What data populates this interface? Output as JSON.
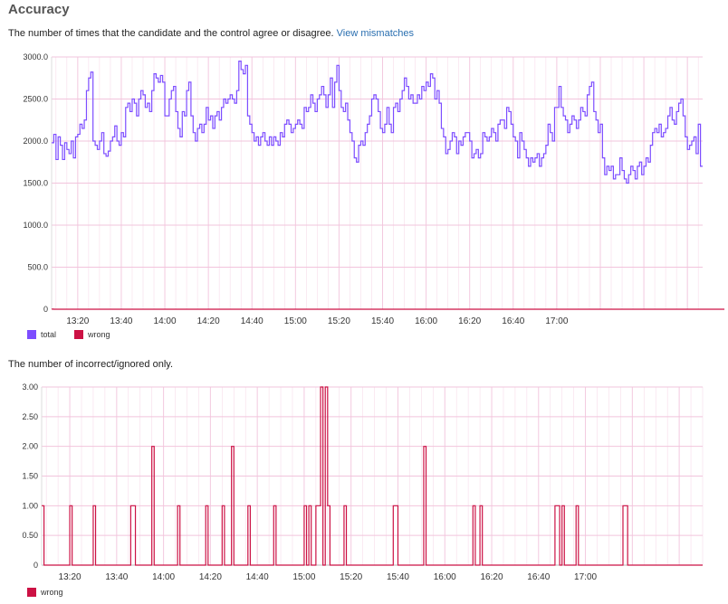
{
  "page": {
    "title": "Accuracy",
    "desc1": "The number of times that the candidate and the control agree or disagree.",
    "link": "View mismatches",
    "desc2": "The number of incorrect/ignored only."
  },
  "colors": {
    "total": "#7d4dff",
    "wrong": "#cc1144",
    "grid": "#f2c4dc"
  },
  "chart_data": [
    {
      "type": "line",
      "subtype": "step",
      "xlabel": "",
      "ylabel": "",
      "x_start": "13:08",
      "x_step_minutes": 1,
      "ylim": [
        0,
        3000
      ],
      "yticks": [
        "3000.0",
        "2500.0",
        "2000.0",
        "1500.0",
        "1000.0",
        "500.0",
        "0"
      ],
      "xticks": [
        "13:20",
        "13:40",
        "14:00",
        "14:20",
        "14:40",
        "15:00",
        "15:20",
        "15:40",
        "16:00",
        "16:20",
        "16:40",
        "17:00"
      ],
      "legend": [
        "total",
        "wrong"
      ],
      "legend_position": "bottom-left",
      "series": [
        {
          "name": "total",
          "color": "#7d4dff",
          "values": [
            1980,
            2080,
            1780,
            2050,
            1950,
            1780,
            1980,
            1900,
            1850,
            2000,
            1800,
            2050,
            2080,
            2200,
            2150,
            2250,
            2600,
            2750,
            2820,
            2000,
            1950,
            1900,
            2000,
            2100,
            1850,
            1820,
            1880,
            2000,
            2050,
            2180,
            2000,
            1950,
            2100,
            2050,
            2400,
            2450,
            2350,
            2500,
            2450,
            2300,
            2500,
            2600,
            2550,
            2400,
            2450,
            2350,
            2600,
            2800,
            2750,
            2700,
            2780,
            2700,
            2300,
            2300,
            2500,
            2600,
            2650,
            2350,
            2150,
            2050,
            2350,
            2300,
            2600,
            2700,
            2300,
            2100,
            2000,
            2150,
            2200,
            2100,
            2200,
            2400,
            2250,
            2300,
            2150,
            2300,
            2350,
            2250,
            2400,
            2500,
            2450,
            2500,
            2550,
            2500,
            2450,
            2600,
            2950,
            2850,
            2800,
            2900,
            2300,
            2200,
            2100,
            2000,
            2050,
            1950,
            2050,
            2100,
            2000,
            1950,
            2050,
            1950,
            2050,
            2000,
            1950,
            2100,
            2050,
            2200,
            2250,
            2200,
            2100,
            2150,
            2200,
            2250,
            2200,
            2150,
            2400,
            2350,
            2400,
            2550,
            2450,
            2350,
            2500,
            2550,
            2650,
            2550,
            2400,
            2550,
            2750,
            2400,
            2700,
            2900,
            2600,
            2400,
            2350,
            2450,
            2250,
            2100,
            2000,
            1800,
            1750,
            1950,
            2000,
            1950,
            2100,
            2200,
            2300,
            2500,
            2550,
            2500,
            2350,
            2150,
            2100,
            2200,
            2400,
            2200,
            2100,
            2400,
            2450,
            2350,
            2500,
            2600,
            2750,
            2650,
            2500,
            2550,
            2450,
            2450,
            2550,
            2500,
            2650,
            2600,
            2700,
            2650,
            2800,
            2750,
            2500,
            2600,
            2450,
            2150,
            2050,
            1850,
            1900,
            2000,
            2100,
            2050,
            1850,
            2000,
            1950,
            2050,
            2100,
            2100,
            2000,
            1800,
            1850,
            1900,
            1800,
            1850,
            2100,
            2050,
            2000,
            2050,
            2150,
            2100,
            2000,
            2200,
            2250,
            2250,
            2150,
            2400,
            2350,
            2200,
            2050,
            2000,
            1800,
            2100,
            2000,
            1900,
            1800,
            1700,
            1800,
            1750,
            1800,
            1850,
            1700,
            1800,
            1850,
            1950,
            2200,
            2100,
            2000,
            2400,
            2400,
            2650,
            2400,
            2300,
            2250,
            2100,
            2200,
            2300,
            2250,
            2150,
            2250,
            2400,
            2350,
            2300,
            2550,
            2650,
            2700,
            2350,
            2250,
            2100,
            2200,
            1800,
            1600,
            1700,
            1650,
            1700,
            1550,
            1600,
            1600,
            1800,
            1650,
            1550,
            1500,
            1600,
            1700,
            1650,
            1550,
            1700,
            1750,
            1600,
            1700,
            1800,
            1750,
            1950,
            2100,
            2150,
            2100,
            2200,
            2050,
            2100,
            2150,
            2300,
            2400,
            2250,
            2200,
            2350,
            2450,
            2500,
            2300,
            2050,
            1900,
            1950,
            2000,
            2050,
            1850,
            2200,
            1700
          ]
        },
        {
          "name": "wrong",
          "color": "#cc1144",
          "values": [
            1,
            0,
            0,
            0,
            0,
            0,
            0,
            0,
            0,
            0,
            0,
            0,
            0,
            0,
            0,
            0,
            0,
            0,
            0,
            0,
            0,
            0,
            0,
            0,
            0,
            0,
            0,
            0,
            0,
            0,
            0,
            0,
            0,
            0,
            0,
            0,
            0,
            0,
            0,
            0,
            0,
            0,
            0,
            0,
            0,
            0,
            0,
            0,
            0,
            0,
            0,
            0,
            0,
            0,
            0,
            0,
            0,
            0,
            0,
            0,
            0,
            0,
            0,
            0,
            0,
            0,
            0,
            0,
            0,
            0,
            0,
            0,
            0,
            0,
            0,
            0,
            0,
            0,
            0,
            0,
            0,
            0,
            0,
            0,
            0,
            0,
            0,
            0,
            0,
            0,
            0,
            0,
            0,
            0,
            0,
            0,
            0,
            0,
            0,
            0,
            0,
            0,
            0,
            0,
            0,
            0,
            0,
            0,
            0,
            0,
            0,
            0,
            0,
            0,
            0,
            0,
            0,
            0,
            0,
            0,
            0,
            0,
            0,
            0,
            0,
            0,
            0,
            0,
            0,
            0,
            0,
            0,
            0,
            0,
            0,
            0,
            0,
            0,
            0,
            0,
            0,
            0,
            0,
            0,
            0,
            0,
            0,
            0,
            0,
            0,
            0,
            0,
            0,
            0,
            0,
            0,
            0,
            0,
            0,
            0,
            0,
            0,
            0,
            0,
            0,
            0,
            0,
            0,
            0,
            0,
            0,
            0,
            0,
            0,
            0,
            0,
            0,
            0,
            0,
            0,
            0,
            0,
            0,
            0,
            0,
            0,
            0,
            0,
            0,
            0,
            0,
            0,
            0,
            0,
            0,
            0,
            0,
            0,
            0,
            0,
            0,
            0,
            0,
            0,
            0,
            0,
            0,
            0,
            0,
            0,
            0,
            0,
            0,
            0,
            0,
            0,
            0,
            0,
            0,
            0,
            0,
            0,
            0,
            0,
            0,
            0,
            0,
            0,
            0,
            0,
            0,
            0,
            0,
            0,
            0,
            0,
            0,
            0,
            0,
            0,
            0,
            0,
            0,
            0,
            0,
            0,
            0,
            0,
            0,
            0,
            0,
            0,
            0,
            0,
            0,
            0,
            0,
            0,
            0,
            0,
            0,
            0,
            0,
            0,
            0,
            0,
            0,
            0,
            0,
            0,
            0,
            0,
            0,
            0,
            0,
            0,
            0,
            0,
            0,
            0,
            0,
            0,
            0,
            0,
            0,
            0,
            0,
            0,
            0,
            0,
            0,
            0,
            0,
            0,
            0,
            0,
            0,
            0,
            0,
            0,
            0,
            0,
            0,
            0,
            0,
            0,
            0,
            0,
            0
          ]
        }
      ]
    },
    {
      "type": "line",
      "subtype": "step",
      "xlabel": "",
      "ylabel": "",
      "x_start": "13:08",
      "x_step_minutes": 1,
      "ylim": [
        0,
        3
      ],
      "yticks": [
        "3.00",
        "2.50",
        "2.00",
        "1.50",
        "1.00",
        "0.50",
        "0"
      ],
      "xticks": [
        "13:20",
        "13:40",
        "14:00",
        "14:20",
        "14:40",
        "15:00",
        "15:20",
        "15:40",
        "16:00",
        "16:20",
        "16:40",
        "17:00"
      ],
      "legend": [
        "wrong"
      ],
      "legend_position": "bottom-left",
      "series": [
        {
          "name": "wrong",
          "color": "#cc1144",
          "values": [
            1,
            0,
            0,
            0,
            0,
            0,
            0,
            0,
            0,
            0,
            0,
            0,
            1,
            0,
            0,
            0,
            0,
            0,
            0,
            0,
            0,
            0,
            1,
            0,
            0,
            0,
            0,
            0,
            0,
            0,
            0,
            0,
            0,
            0,
            0,
            0,
            0,
            0,
            1,
            1,
            0,
            0,
            0,
            0,
            0,
            0,
            0,
            2,
            0,
            0,
            0,
            0,
            0,
            0,
            0,
            0,
            0,
            0,
            1,
            0,
            0,
            0,
            0,
            0,
            0,
            0,
            0,
            0,
            0,
            0,
            1,
            0,
            0,
            0,
            0,
            0,
            0,
            1,
            0,
            0,
            0,
            2,
            0,
            0,
            0,
            0,
            0,
            0,
            1,
            0,
            0,
            0,
            0,
            0,
            0,
            0,
            0,
            0,
            0,
            1,
            0,
            0,
            0,
            0,
            0,
            0,
            0,
            0,
            0,
            0,
            0,
            0,
            1,
            0,
            1,
            0,
            0,
            1,
            1,
            3,
            0,
            3,
            1,
            0,
            0,
            0,
            0,
            0,
            0,
            1,
            0,
            0,
            0,
            0,
            0,
            0,
            0,
            0,
            0,
            0,
            0,
            0,
            0,
            0,
            0,
            0,
            0,
            0,
            0,
            0,
            1,
            1,
            0,
            0,
            0,
            0,
            0,
            0,
            0,
            0,
            0,
            0,
            0,
            2,
            0,
            0,
            0,
            0,
            0,
            0,
            0,
            0,
            0,
            0,
            0,
            0,
            0,
            0,
            0,
            0,
            0,
            0,
            0,
            0,
            1,
            0,
            0,
            1,
            0,
            0,
            0,
            0,
            0,
            0,
            0,
            0,
            0,
            0,
            0,
            0,
            0,
            0,
            0,
            0,
            0,
            0,
            0,
            0,
            0,
            0,
            0,
            0,
            0,
            0,
            0,
            0,
            0,
            0,
            0,
            1,
            1,
            0,
            1,
            0,
            0,
            0,
            0,
            0,
            1,
            0,
            0,
            0,
            0,
            0,
            0,
            0,
            0,
            0,
            0,
            0,
            0,
            0,
            0,
            0,
            0,
            0,
            0,
            0,
            1,
            1,
            0,
            0,
            0,
            0,
            0,
            0,
            0,
            0,
            0,
            0,
            0,
            0,
            0,
            0,
            0,
            0,
            0,
            0,
            0,
            0,
            0,
            0,
            0,
            0,
            0,
            0,
            0,
            0,
            0,
            0,
            0,
            0
          ]
        }
      ]
    }
  ]
}
